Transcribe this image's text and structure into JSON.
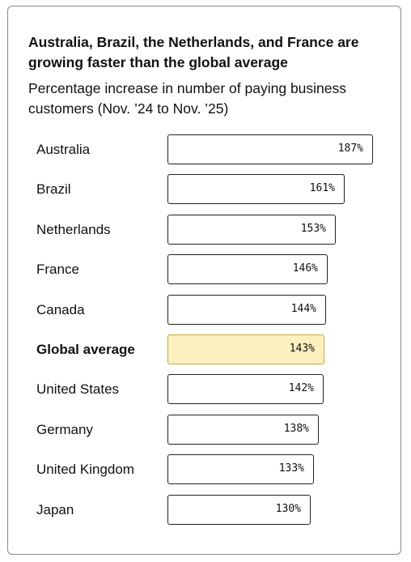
{
  "chart_data": {
    "type": "bar",
    "orientation": "horizontal",
    "title": "Australia, Brazil, the Netherlands, and France are growing faster than the global average",
    "subtitle": "Percentage increase in number of paying business customers (Nov. ’24 to Nov. ’25)",
    "value_suffix": "%",
    "categories": [
      "Australia",
      "Brazil",
      "Netherlands",
      "France",
      "Canada",
      "Global average",
      "United States",
      "Germany",
      "United Kingdom",
      "Japan"
    ],
    "values": [
      187,
      161,
      153,
      146,
      144,
      143,
      142,
      138,
      133,
      130
    ],
    "highlight": "Global average",
    "colors": {
      "bar_fill": "#ffffff",
      "bar_border": "#222222",
      "highlight_fill": "#fcf0bf",
      "highlight_border": "#c7a846",
      "text": "#111111"
    }
  }
}
